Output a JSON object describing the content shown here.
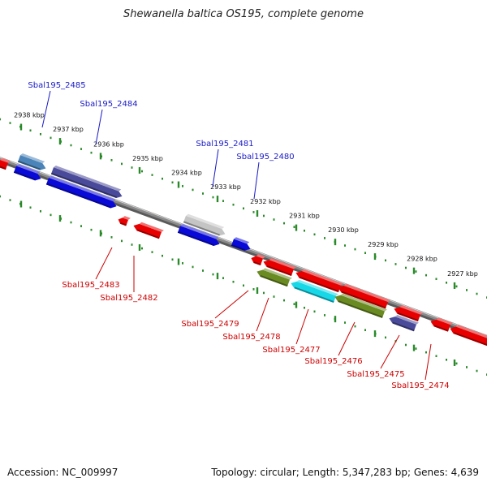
{
  "title": "Shewanella baltica OS195, complete genome",
  "footer": {
    "accession": "Accession: NC_009997",
    "stats": "Topology: circular; Length: 5,347,283 bp; Genes: 4,639"
  },
  "ticks": [
    "2938 kbp",
    "2937 kbp",
    "2936 kbp",
    "2935 kbp",
    "2934 kbp",
    "2933 kbp",
    "2932 kbp",
    "2931 kbp",
    "2930 kbp",
    "2929 kbp",
    "2928 kbp",
    "2927 kbp"
  ],
  "genes_top": [
    "Sbal195_2485",
    "Sbal195_2484",
    "Sbal195_2481",
    "Sbal195_2480"
  ],
  "genes_bottom": [
    "Sbal195_2483",
    "Sbal195_2482",
    "Sbal195_2479",
    "Sbal195_2478",
    "Sbal195_2477",
    "Sbal195_2476",
    "Sbal195_2475",
    "Sbal195_2474"
  ],
  "colors": {
    "top_label": "#1a1ac8",
    "bottom_label": "#cc0000",
    "backbone": "#8a8a8a",
    "tick": "#2a8a2a",
    "cds_blue": "#0a0ad8",
    "cds_red": "#e80000",
    "cds_slate": "#4a4a9a",
    "cds_steel": "#4a84b8",
    "cds_gray": "#c4c4c4",
    "cds_olive": "#6a8a22",
    "cds_cyan": "#18d8e8"
  }
}
